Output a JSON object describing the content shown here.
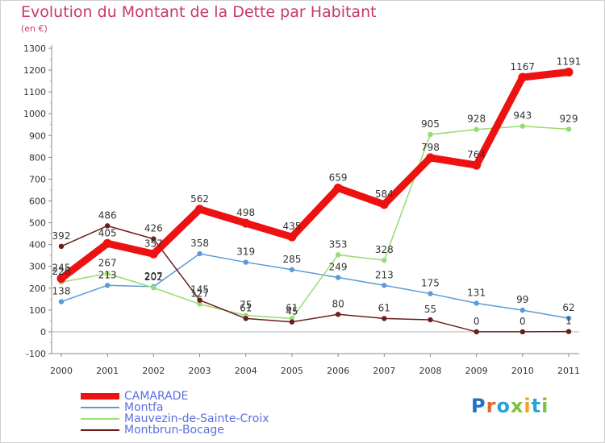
{
  "title": "Evolution du Montant de la Dette par Habitant",
  "subtitle": "(en €)",
  "logo": {
    "text": "Proxiti",
    "colors": [
      "#1f73c7",
      "#e0652e",
      "#2aa3d8",
      "#7ac143",
      "#f0a126",
      "#2aa3d8",
      "#7ac143"
    ]
  },
  "chart_data": {
    "type": "line",
    "x": [
      "2000",
      "2001",
      "2002",
      "2003",
      "2004",
      "2005",
      "2006",
      "2007",
      "2008",
      "2009",
      "2010",
      "2011"
    ],
    "ylim": [
      -100,
      1300
    ],
    "ytick_step": 100,
    "grid": false,
    "legend_position": "bottom-left",
    "series": [
      {
        "name": "CAMARADE",
        "color": "#ee1111",
        "width": 9,
        "values": [
          245,
          405,
          357,
          562,
          498,
          435,
          659,
          584,
          798,
          764,
          1167,
          1191
        ]
      },
      {
        "name": "Montfa",
        "color": "#5b9bd5",
        "width": 1.5,
        "values": [
          138,
          213,
          207,
          358,
          319,
          285,
          249,
          213,
          175,
          131,
          99,
          62
        ]
      },
      {
        "name": "Mauvezin-de-Sainte-Croix",
        "color": "#96dc6e",
        "width": 1.5,
        "values": [
          228,
          267,
          202,
          127,
          75,
          61,
          353,
          328,
          905,
          928,
          943,
          929
        ]
      },
      {
        "name": "Montbrun-Bocage",
        "color": "#6b1c1c",
        "width": 1.5,
        "values": [
          392,
          486,
          426,
          145,
          61,
          45,
          80,
          61,
          55,
          0,
          0,
          1
        ]
      }
    ]
  }
}
